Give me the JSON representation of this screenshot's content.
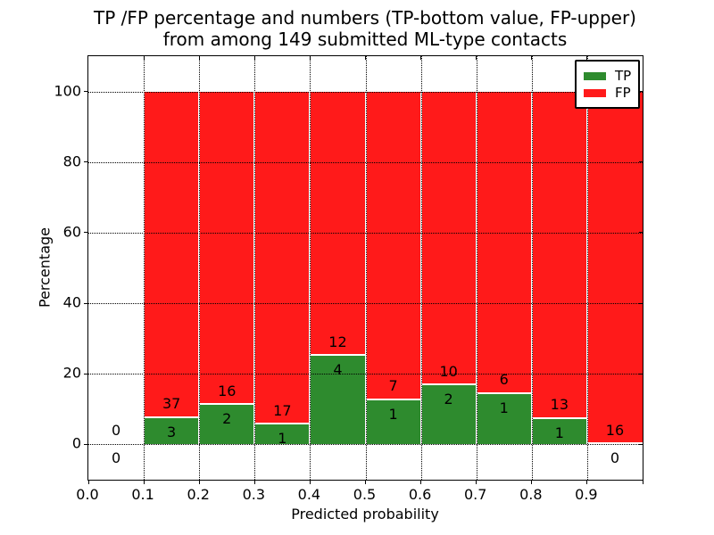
{
  "figure": {
    "title_line1": "TP /FP percentage and numbers (TP-bottom value, FP-upper)",
    "title_line2": "from among 149 submitted ML-type contacts",
    "xlabel": "Predicted probability",
    "ylabel": "Percentage"
  },
  "legend": {
    "position": "upper right",
    "items": [
      {
        "label": "TP",
        "color": "#2e8b2e"
      },
      {
        "label": "FP",
        "color": "#ff1a1a"
      }
    ]
  },
  "chart_data": {
    "type": "bar",
    "stacked": true,
    "normalized_to_percent": 100,
    "title": "TP /FP percentage and numbers (TP-bottom value, FP-upper) from among 149 submitted ML-type contacts",
    "xlabel": "Predicted probability",
    "ylabel": "Percentage",
    "xlim": [
      0.0,
      1.0
    ],
    "ylim": [
      -10,
      110
    ],
    "xtick_values": [
      0.0,
      0.1,
      0.2,
      0.3,
      0.4,
      0.5,
      0.6,
      0.7,
      0.8,
      0.9
    ],
    "xtick_labels": [
      "0.0",
      "0.1",
      "0.2",
      "0.3",
      "0.4",
      "0.5",
      "0.6",
      "0.7",
      "0.8",
      "0.9"
    ],
    "ytick_values": [
      0,
      20,
      40,
      60,
      80,
      100
    ],
    "ytick_labels": [
      "0",
      "20",
      "40",
      "60",
      "80",
      "100"
    ],
    "grid": "dotted both axes, drawn above bars",
    "total_contacts": 149,
    "bin_width": 0.1,
    "series": [
      {
        "name": "TP",
        "color": "#2e8b2e",
        "counts": [
          0,
          3,
          2,
          1,
          4,
          1,
          2,
          1,
          1,
          0
        ]
      },
      {
        "name": "FP",
        "color": "#ff1a1a",
        "counts": [
          0,
          37,
          16,
          17,
          12,
          7,
          10,
          6,
          13,
          16
        ]
      }
    ],
    "bins": [
      {
        "range": [
          0.0,
          0.1
        ],
        "tp": 0,
        "fp": 0,
        "tp_pct": 0,
        "fp_pct": 0
      },
      {
        "range": [
          0.1,
          0.2
        ],
        "tp": 3,
        "fp": 37,
        "tp_pct": 7.5,
        "fp_pct": 92.5
      },
      {
        "range": [
          0.2,
          0.3
        ],
        "tp": 2,
        "fp": 16,
        "tp_pct": 11.111,
        "fp_pct": 88.889
      },
      {
        "range": [
          0.3,
          0.4
        ],
        "tp": 1,
        "fp": 17,
        "tp_pct": 5.556,
        "fp_pct": 94.444
      },
      {
        "range": [
          0.4,
          0.5
        ],
        "tp": 4,
        "fp": 12,
        "tp_pct": 25.0,
        "fp_pct": 75.0
      },
      {
        "range": [
          0.5,
          0.6
        ],
        "tp": 1,
        "fp": 7,
        "tp_pct": 12.5,
        "fp_pct": 87.5
      },
      {
        "range": [
          0.6,
          0.7
        ],
        "tp": 2,
        "fp": 10,
        "tp_pct": 16.667,
        "fp_pct": 83.333
      },
      {
        "range": [
          0.7,
          0.8
        ],
        "tp": 1,
        "fp": 6,
        "tp_pct": 14.286,
        "fp_pct": 85.714
      },
      {
        "range": [
          0.8,
          0.9
        ],
        "tp": 1,
        "fp": 13,
        "tp_pct": 7.143,
        "fp_pct": 92.857
      },
      {
        "range": [
          0.9,
          1.0
        ],
        "tp": 0,
        "fp": 16,
        "tp_pct": 0,
        "fp_pct": 100
      }
    ],
    "annotation_rule": "FP count drawn just above top of green segment, TP count just below it"
  }
}
